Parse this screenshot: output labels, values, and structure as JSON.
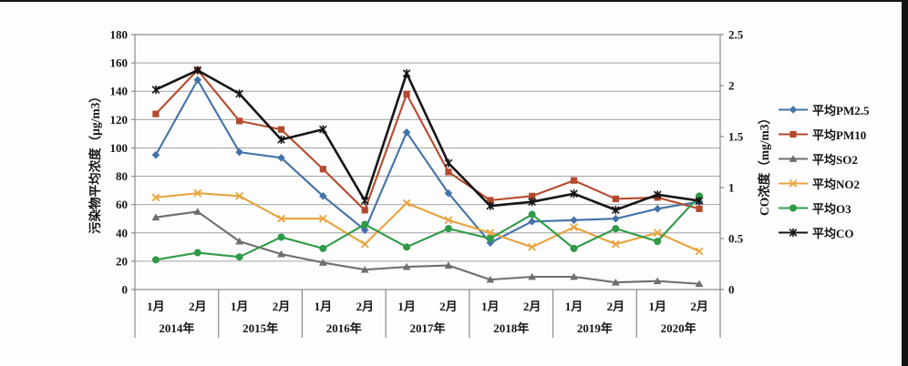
{
  "chart_data": {
    "type": "line",
    "title": "",
    "years": [
      "2014年",
      "2015年",
      "2016年",
      "2017年",
      "2018年",
      "2019年",
      "2020年"
    ],
    "months_per_year": [
      "1月",
      "2月"
    ],
    "categories": [
      "2014年1月",
      "2014年2月",
      "2015年1月",
      "2015年2月",
      "2016年1月",
      "2016年2月",
      "2017年1月",
      "2017年2月",
      "2018年1月",
      "2018年2月",
      "2019年1月",
      "2019年2月",
      "2020年1月",
      "2020年2月"
    ],
    "left_axis": {
      "label": "污染物平均浓度（μg/m3）",
      "min": 0,
      "max": 180,
      "step": 20,
      "ticks": [
        "0",
        "20",
        "40",
        "60",
        "80",
        "100",
        "120",
        "140",
        "160",
        "180"
      ]
    },
    "right_axis": {
      "label": "CO浓度（mg/m3）",
      "min": 0,
      "max": 2.5,
      "step": 0.5,
      "ticks": [
        "0",
        "0.5",
        "1",
        "1.5",
        "2",
        "2.5"
      ]
    },
    "grid": true,
    "legend_position": "right",
    "series": [
      {
        "name": "平均PM2.5",
        "slug": "pm2-5",
        "color": "#4472a8",
        "marker": "diamond",
        "axis": "left",
        "values": [
          95,
          148,
          97,
          93,
          66,
          42,
          111,
          68,
          33,
          48,
          49,
          50,
          57,
          62
        ]
      },
      {
        "name": "平均PM10",
        "slug": "pm10",
        "color": "#b5492e",
        "marker": "square",
        "axis": "left",
        "values": [
          124,
          155,
          119,
          113,
          85,
          56,
          138,
          83,
          63,
          66,
          77,
          64,
          65,
          57
        ]
      },
      {
        "name": "平均SO2",
        "slug": "so2",
        "color": "#6e6e6e",
        "marker": "triangle",
        "axis": "left",
        "values": [
          51,
          55,
          34,
          25,
          19,
          14,
          16,
          17,
          7,
          9,
          9,
          5,
          6,
          4
        ]
      },
      {
        "name": "平均NO2",
        "slug": "no2",
        "color": "#e8a33d",
        "marker": "x",
        "axis": "left",
        "values": [
          65,
          68,
          66,
          50,
          50,
          32,
          61,
          49,
          40,
          30,
          44,
          32,
          40,
          27
        ]
      },
      {
        "name": "平均O3",
        "slug": "o3",
        "color": "#2f9a47",
        "marker": "circle",
        "axis": "left",
        "values": [
          21,
          26,
          23,
          37,
          29,
          46,
          30,
          43,
          36,
          53,
          29,
          43,
          34,
          66
        ]
      },
      {
        "name": "平均CO",
        "slug": "co",
        "color": "#151515",
        "marker": "asterisk",
        "axis": "right",
        "values": [
          1.96,
          2.15,
          1.92,
          1.47,
          1.57,
          0.87,
          2.12,
          1.24,
          0.82,
          0.86,
          0.94,
          0.78,
          0.93,
          0.87
        ]
      }
    ],
    "colors": {
      "gridline": "#a3a3a3",
      "plot_border": "#8a8a8a",
      "axis_text": "#161616"
    }
  }
}
